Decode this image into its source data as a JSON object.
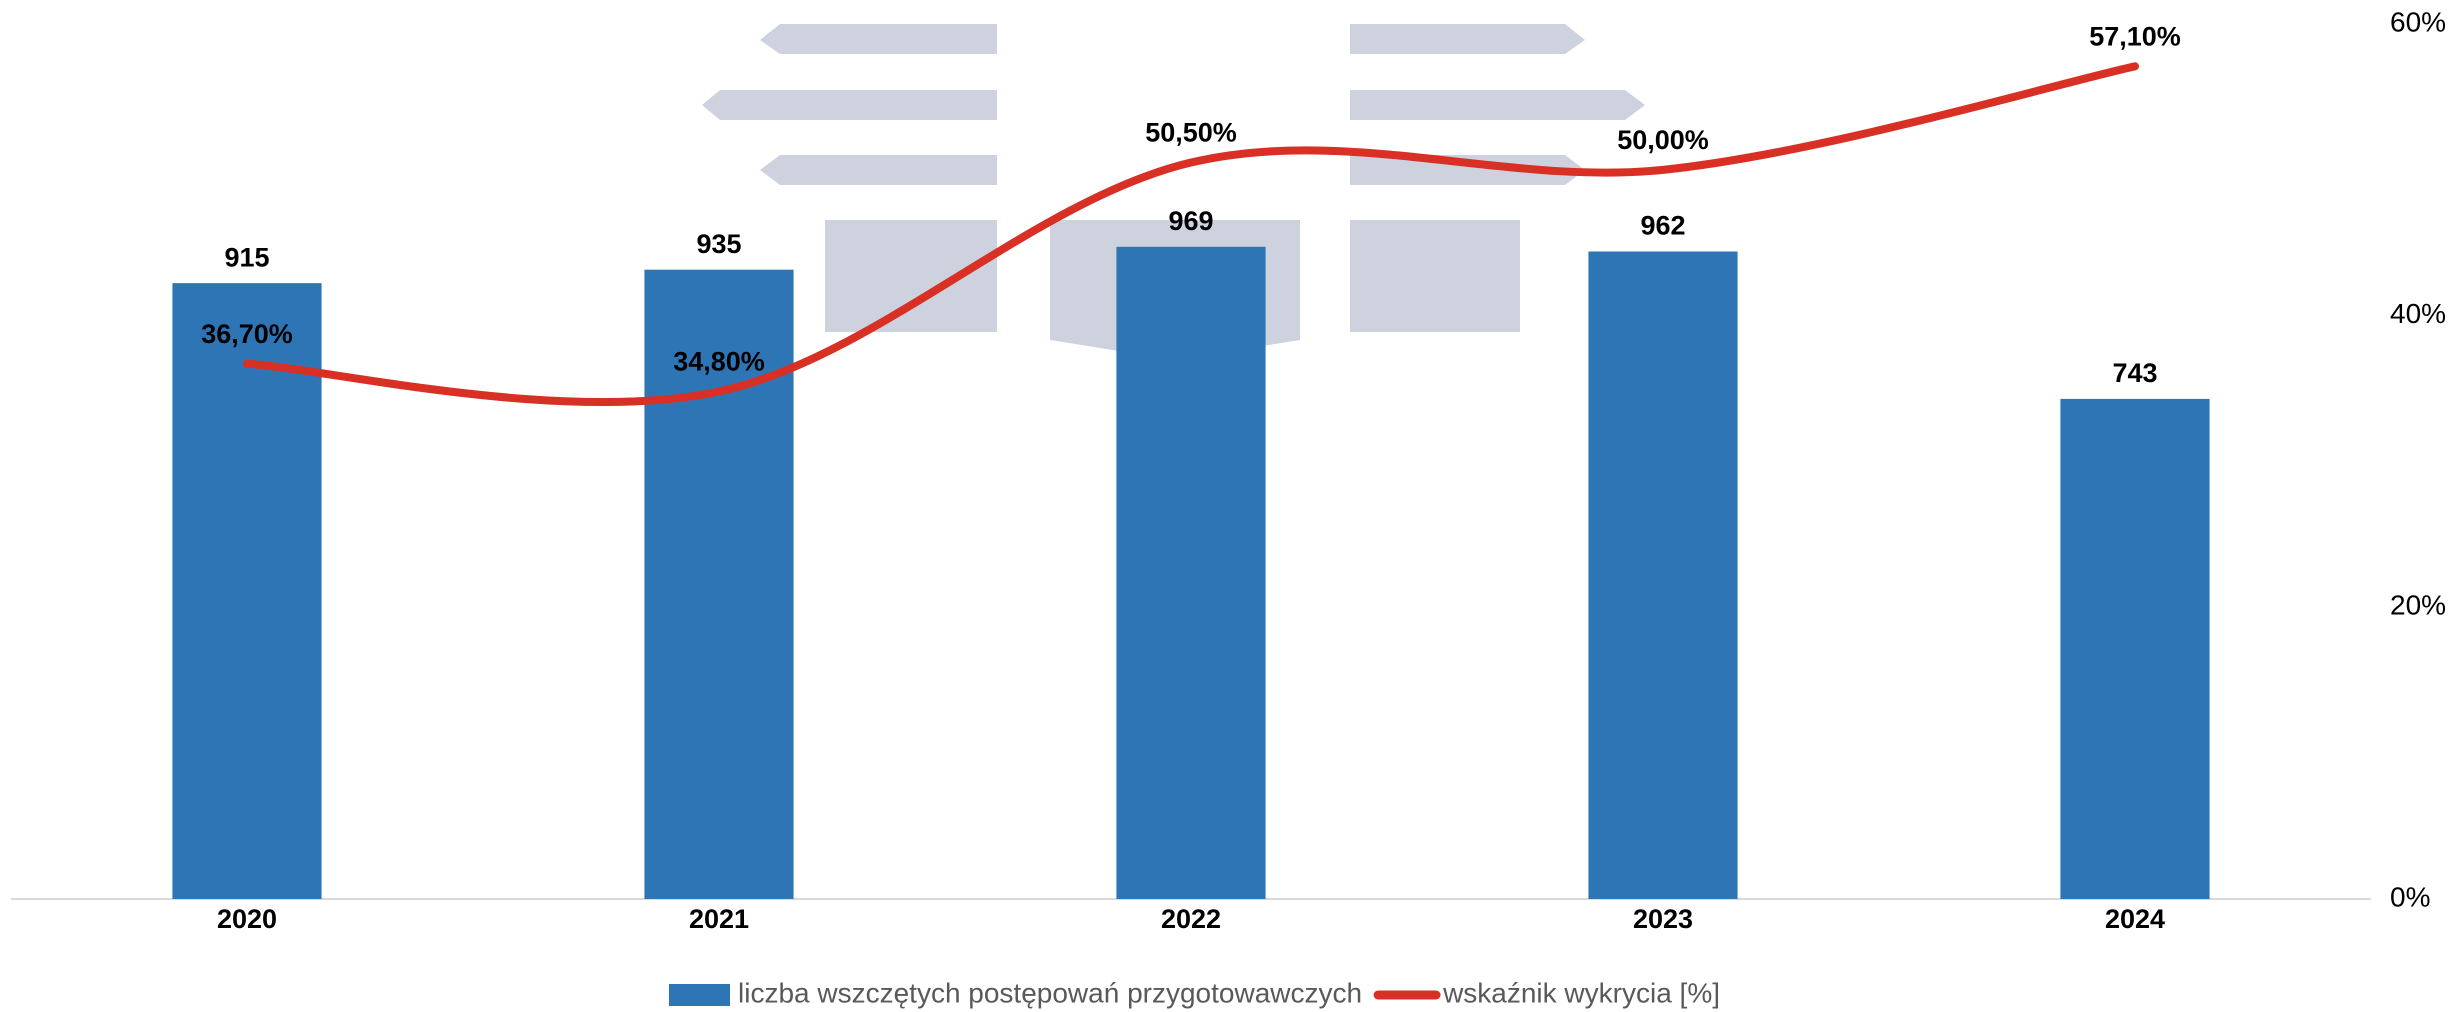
{
  "chart_data": {
    "type": "bar-line",
    "categories": [
      "2020",
      "2021",
      "2022",
      "2023",
      "2024"
    ],
    "series": [
      {
        "name": "liczba wszczętych postępowań przygotowawczych",
        "type": "bar",
        "color": "#2e75b6",
        "values": [
          915,
          935,
          969,
          962,
          743
        ]
      },
      {
        "name": "wskaźnik wykrycia [%]",
        "type": "line",
        "axis": "y2",
        "color": "#d93025",
        "values": [
          36.7,
          34.8,
          50.5,
          50.0,
          57.1
        ],
        "value_labels": [
          "36,70%",
          "34,80%",
          "50,50%",
          "50,00%",
          "57,10%"
        ]
      }
    ],
    "ylim": [
      0,
      1300
    ],
    "y2lim": [
      0,
      60
    ],
    "y2ticks": [
      {
        "value": 0,
        "label": "0%"
      },
      {
        "value": 20,
        "label": "20%"
      },
      {
        "value": 40,
        "label": "40%"
      },
      {
        "value": 60,
        "label": "60%"
      }
    ],
    "legend": "bottom"
  }
}
